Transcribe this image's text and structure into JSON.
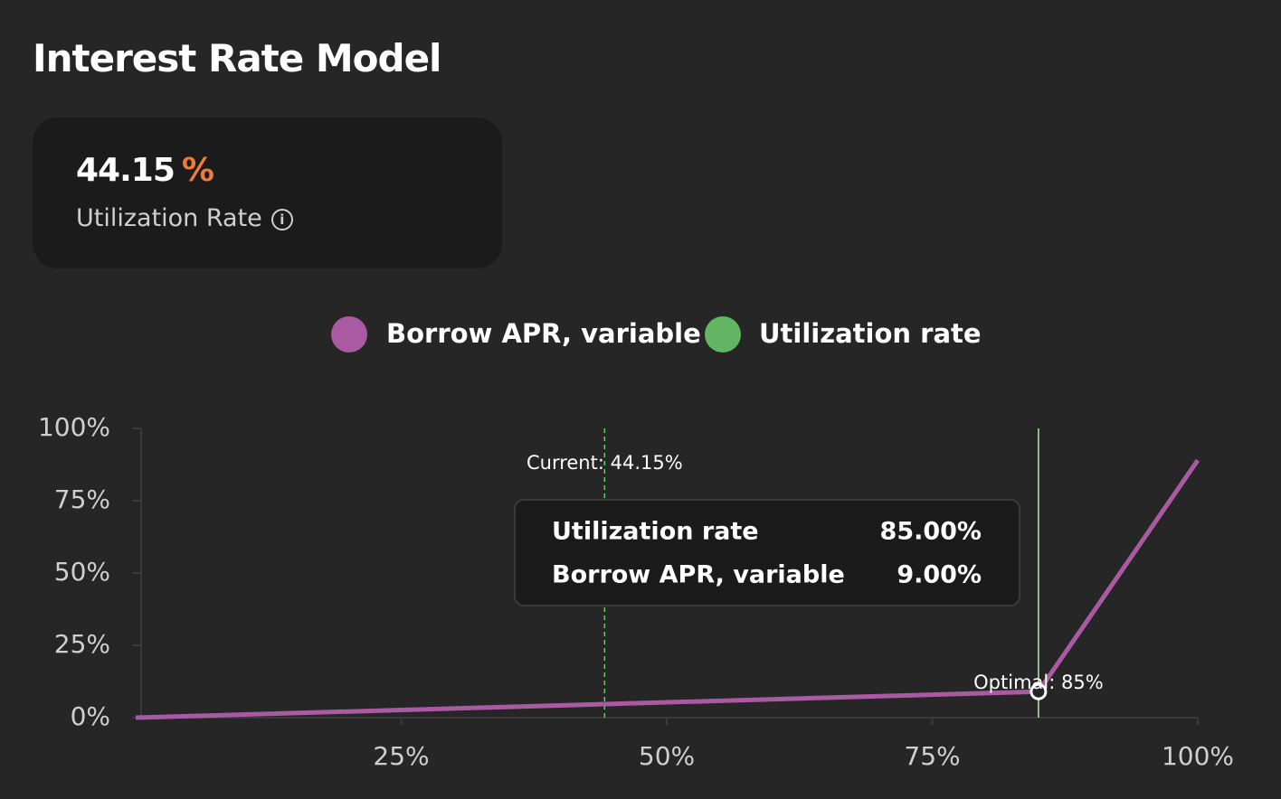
{
  "title": "Interest Rate Model",
  "card": {
    "value": "44.15",
    "unit": "%",
    "label": "Utilization Rate"
  },
  "chart_data": {
    "type": "line",
    "x": [
      0,
      85,
      100
    ],
    "series": [
      {
        "name": "Borrow APR, variable",
        "color": "#a95aa3",
        "values": [
          0,
          9,
          89
        ]
      }
    ],
    "utilization": {
      "name": "Utilization rate",
      "color": "#62b562"
    },
    "xlim": [
      0,
      100
    ],
    "ylim": [
      0,
      100
    ],
    "xticks": [
      {
        "value": 25,
        "label": "25%"
      },
      {
        "value": 50,
        "label": "50%"
      },
      {
        "value": 75,
        "label": "75%"
      },
      {
        "value": 100,
        "label": "100%"
      }
    ],
    "yticks": [
      {
        "value": 0,
        "label": "0%"
      },
      {
        "value": 25,
        "label": "25%"
      },
      {
        "value": 50,
        "label": "50%"
      },
      {
        "value": 75,
        "label": "75%"
      },
      {
        "value": 100,
        "label": "100%"
      }
    ],
    "reference_lines": [
      {
        "x": 44.15,
        "label": "Current: 44.15%",
        "color": "#5fd06a",
        "dashed": true
      },
      {
        "x": 85,
        "label": "Optimal: 85%",
        "color": "#b7e8b7",
        "dashed": false
      }
    ],
    "highlight_point": 1,
    "tooltip": {
      "rows": [
        {
          "label": "Utilization rate",
          "value": "85.00%"
        },
        {
          "label": "Borrow APR, variable",
          "value": "9.00%"
        }
      ]
    }
  }
}
